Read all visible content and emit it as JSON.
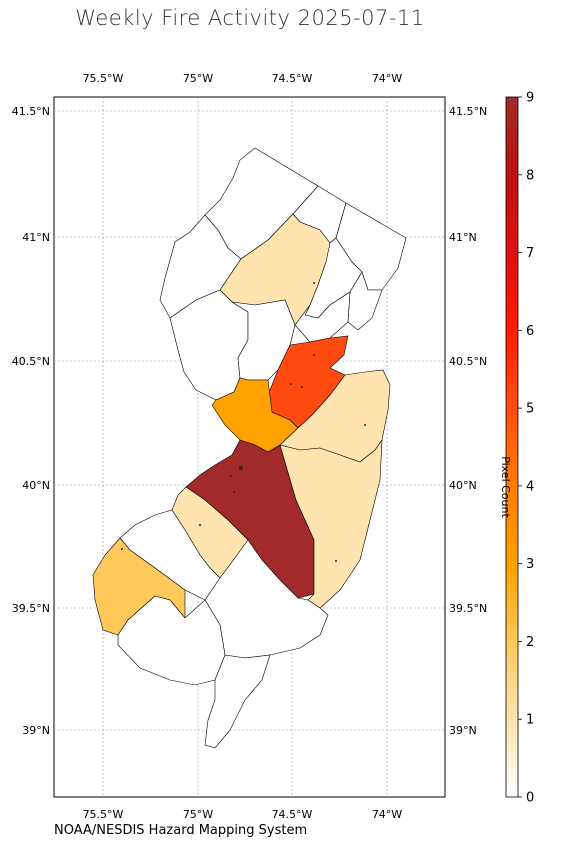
{
  "title": "Weekly Fire Activity 2025-07-11",
  "credit": "NOAA/NESDIS Hazard Mapping System",
  "colorbar": {
    "label": "Pixel Count",
    "min": 0,
    "max": 9,
    "ticks": [
      "0",
      "1",
      "2",
      "3",
      "4",
      "5",
      "6",
      "7",
      "8",
      "9"
    ],
    "colors": [
      "#ffffff",
      "#ffe4b0",
      "#ffc85a",
      "#ffa200",
      "#ff7a00",
      "#ff4a10",
      "#ff1a00",
      "#e01010",
      "#c01010",
      "#a32a2a"
    ]
  },
  "axes": {
    "lon_labels": [
      "75.5°W",
      "75°W",
      "74.5°W",
      "74°W"
    ],
    "lat_labels": [
      "41.5°N",
      "41°N",
      "40.5°N",
      "40°N",
      "39.5°N",
      "39°N"
    ]
  },
  "chart_data": {
    "type": "choropleth",
    "title": "Weekly Fire Activity 2025-07-11",
    "value_label": "Pixel Count",
    "range": [
      0,
      9
    ],
    "regions": [
      {
        "value": 0
      },
      {
        "value": 0
      },
      {
        "value": 0
      },
      {
        "value": 0
      },
      {
        "value": 0
      },
      {
        "value": 0
      },
      {
        "value": 0
      },
      {
        "value": 0
      },
      {
        "value": 0
      },
      {
        "value": 0
      },
      {
        "value": 0
      },
      {
        "value": 0
      },
      {
        "value": 1
      },
      {
        "value": 1
      },
      {
        "value": 1
      },
      {
        "value": 1
      },
      {
        "value": 2
      },
      {
        "value": 3
      },
      {
        "value": 5
      },
      {
        "value": 5
      },
      {
        "value": 9
      }
    ]
  }
}
